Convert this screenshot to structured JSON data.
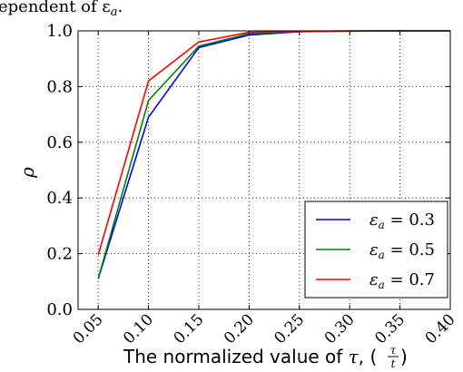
{
  "header_fragment": "ependent of ε",
  "header_fragment_sub": "a",
  "header_fragment_end": ".",
  "chart_data": {
    "type": "line",
    "xlabel": "The normalized value of τ, ( τ/t )",
    "xlabel_main": "The normalized value of ",
    "xlabel_tau": "τ",
    "xlabel_paren": ", ( ",
    "xlabel_frac_num": "τ",
    "xlabel_frac_den": "t",
    "xlabel_close": " )",
    "ylabel": "ρ",
    "x": [
      0.05,
      0.1,
      0.15,
      0.2,
      0.25,
      0.3,
      0.35,
      0.4
    ],
    "x_tick_labels": [
      "0.05",
      "0.10",
      "0.15",
      "0.20",
      "0.25",
      "0.30",
      "0.35",
      "0.40"
    ],
    "y_tick_values": [
      0.0,
      0.2,
      0.4,
      0.6,
      0.8,
      1.0
    ],
    "y_tick_labels": [
      "0.0",
      "0.2",
      "0.4",
      "0.6",
      "0.8",
      "1.0"
    ],
    "xlim": [
      0.03,
      0.4
    ],
    "ylim": [
      0.0,
      1.0
    ],
    "grid": true,
    "legend_position": "bottom-right",
    "series": [
      {
        "name": "εa = 0.3",
        "legend_symbol": "ε",
        "legend_sub": "a",
        "legend_value": " = 0.3",
        "color": "#0000ff",
        "values": [
          0.11,
          0.69,
          0.94,
          0.985,
          0.997,
          0.999,
          1.0,
          1.0
        ]
      },
      {
        "name": "εa = 0.5",
        "legend_symbol": "ε",
        "legend_sub": "a",
        "legend_value": " = 0.5",
        "color": "#008000",
        "values": [
          0.11,
          0.75,
          0.945,
          0.99,
          0.998,
          0.999,
          1.0,
          1.0
        ]
      },
      {
        "name": "εa = 0.7",
        "legend_symbol": "ε",
        "legend_sub": "a",
        "legend_value": " = 0.7",
        "color": "#ff0000",
        "values": [
          0.195,
          0.82,
          0.96,
          0.995,
          0.998,
          1.0,
          1.0,
          1.0
        ]
      }
    ]
  }
}
